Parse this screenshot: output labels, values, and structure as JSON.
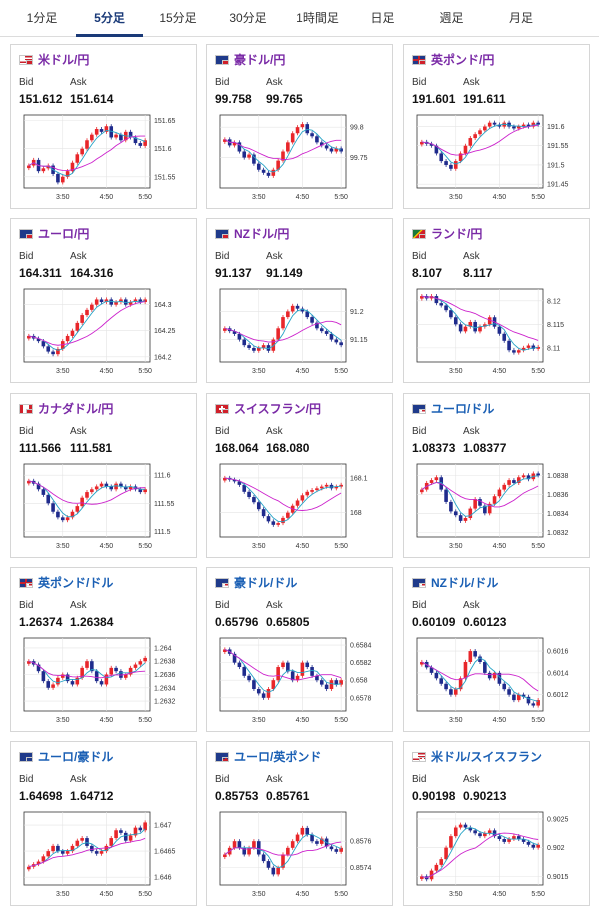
{
  "tabs": [
    "1分足",
    "5分足",
    "15分足",
    "30分足",
    "1時間足",
    "日足",
    "週足",
    "月足"
  ],
  "active_tab": 1,
  "labels": {
    "bid": "Bid",
    "ask": "Ask"
  },
  "colors": {
    "up": "#e8262a",
    "down": "#1f2b8c",
    "ma_short": "#25a3c6",
    "ma_long": "#cc22cc",
    "pair_purple": "#7a2aa6",
    "pair_blue": "#1a5fb4"
  },
  "cards": [
    {
      "name": "usd-jpy",
      "pair": "米ドル/円",
      "pair_color": "purple",
      "flag": "us-jp",
      "bid": "151.612",
      "ask": "151.614",
      "chart_data": {
        "type": "candlestick",
        "x_ticks": [
          "3:50",
          "4:50",
          "5:50"
        ],
        "y_ticks": [
          "151.65",
          "151.6",
          "151.55"
        ],
        "ylim": [
          151.53,
          151.66
        ],
        "close": [
          151.57,
          151.58,
          151.56,
          151.565,
          151.57,
          151.555,
          151.54,
          151.55,
          151.56,
          151.575,
          151.59,
          151.6,
          151.615,
          151.625,
          151.635,
          151.63,
          151.64,
          151.62,
          151.625,
          151.615,
          151.63,
          151.62,
          151.61,
          151.605,
          151.615
        ]
      }
    },
    {
      "name": "aud-jpy",
      "pair": "豪ドル/円",
      "pair_color": "purple",
      "flag": "au-jp",
      "bid": "99.758",
      "ask": "99.765",
      "chart_data": {
        "type": "candlestick",
        "x_ticks": [
          "3:50",
          "4:50",
          "5:50"
        ],
        "y_ticks": [
          "99.8",
          "99.75"
        ],
        "ylim": [
          99.7,
          99.82
        ],
        "close": [
          99.78,
          99.77,
          99.775,
          99.76,
          99.75,
          99.755,
          99.74,
          99.73,
          99.725,
          99.72,
          99.73,
          99.745,
          99.76,
          99.775,
          99.79,
          99.8,
          99.805,
          99.79,
          99.785,
          99.775,
          99.77,
          99.765,
          99.76,
          99.765,
          99.76
        ]
      }
    },
    {
      "name": "gbp-jpy",
      "pair": "英ポンド/円",
      "pair_color": "purple",
      "flag": "gb-jp",
      "bid": "191.601",
      "ask": "191.611",
      "chart_data": {
        "type": "candlestick",
        "x_ticks": [
          "3:50",
          "4:50",
          "5:50"
        ],
        "y_ticks": [
          "191.6",
          "191.55",
          "191.5",
          "191.45"
        ],
        "ylim": [
          191.44,
          191.63
        ],
        "close": [
          191.56,
          191.555,
          191.55,
          191.53,
          191.51,
          191.5,
          191.49,
          191.51,
          191.53,
          191.55,
          191.57,
          191.58,
          191.59,
          191.6,
          191.61,
          191.605,
          191.6,
          191.61,
          191.6,
          191.595,
          191.6,
          191.605,
          191.6,
          191.61,
          191.605
        ]
      }
    },
    {
      "name": "eur-jpy",
      "pair": "ユーロ/円",
      "pair_color": "purple",
      "flag": "eu-jp",
      "bid": "164.311",
      "ask": "164.316",
      "chart_data": {
        "type": "candlestick",
        "x_ticks": [
          "3:50",
          "4:50",
          "5:50"
        ],
        "y_ticks": [
          "164.3",
          "164.25",
          "164.2"
        ],
        "ylim": [
          164.19,
          164.33
        ],
        "close": [
          164.24,
          164.235,
          164.23,
          164.22,
          164.21,
          164.205,
          164.215,
          164.23,
          164.24,
          164.25,
          164.265,
          164.28,
          164.29,
          164.3,
          164.31,
          164.305,
          164.31,
          164.3,
          164.305,
          164.31,
          164.3,
          164.305,
          164.31,
          164.305,
          164.31
        ]
      }
    },
    {
      "name": "nzd-jpy",
      "pair": "NZドル/円",
      "pair_color": "purple",
      "flag": "nz-jp",
      "bid": "91.137",
      "ask": "91.149",
      "chart_data": {
        "type": "candlestick",
        "x_ticks": [
          "3:50",
          "4:50",
          "5:50"
        ],
        "y_ticks": [
          "91.2",
          "91.15"
        ],
        "ylim": [
          91.11,
          91.24
        ],
        "close": [
          91.17,
          91.165,
          91.16,
          91.15,
          91.14,
          91.135,
          91.13,
          91.135,
          91.14,
          91.13,
          91.15,
          91.17,
          91.19,
          91.2,
          91.21,
          91.205,
          91.2,
          91.19,
          91.18,
          91.17,
          91.165,
          91.16,
          91.15,
          91.145,
          91.14
        ]
      }
    },
    {
      "name": "zar-jpy",
      "pair": "ランド/円",
      "pair_color": "purple",
      "flag": "za-jp",
      "bid": "8.107",
      "ask": "8.117",
      "chart_data": {
        "type": "candlestick",
        "x_ticks": [
          "3:50",
          "4:50",
          "5:50"
        ],
        "y_ticks": [
          "8.12",
          "8.115",
          "8.11"
        ],
        "ylim": [
          8.107,
          8.1225
        ],
        "close": [
          8.121,
          8.1205,
          8.121,
          8.1195,
          8.119,
          8.118,
          8.1165,
          8.115,
          8.1135,
          8.1145,
          8.1155,
          8.1135,
          8.1145,
          8.115,
          8.1165,
          8.1145,
          8.113,
          8.1115,
          8.1095,
          8.109,
          8.1095,
          8.11,
          8.1105,
          8.1098,
          8.1102
        ]
      }
    },
    {
      "name": "cad-jpy",
      "pair": "カナダドル/円",
      "pair_color": "purple",
      "flag": "ca-jp",
      "bid": "111.566",
      "ask": "111.581",
      "chart_data": {
        "type": "candlestick",
        "x_ticks": [
          "3:50",
          "4:50",
          "5:50"
        ],
        "y_ticks": [
          "111.6",
          "111.55",
          "111.5"
        ],
        "ylim": [
          111.49,
          111.62
        ],
        "close": [
          111.59,
          111.585,
          111.575,
          111.565,
          111.55,
          111.535,
          111.525,
          111.52,
          111.525,
          111.535,
          111.545,
          111.56,
          111.57,
          111.575,
          111.58,
          111.585,
          111.58,
          111.575,
          111.585,
          111.58,
          111.575,
          111.58,
          111.575,
          111.57,
          111.575
        ]
      }
    },
    {
      "name": "chf-jpy",
      "pair": "スイスフラン/円",
      "pair_color": "purple",
      "flag": "ch-jp",
      "bid": "168.064",
      "ask": "168.080",
      "chart_data": {
        "type": "candlestick",
        "x_ticks": [
          "3:50",
          "4:50",
          "5:50"
        ],
        "y_ticks": [
          "168.1",
          "168"
        ],
        "ylim": [
          167.93,
          168.14
        ],
        "close": [
          168.1,
          168.095,
          168.09,
          168.08,
          168.06,
          168.045,
          168.03,
          168.01,
          167.99,
          167.975,
          167.965,
          167.97,
          167.985,
          168.0,
          168.02,
          168.035,
          168.05,
          168.06,
          168.065,
          168.07,
          168.075,
          168.08,
          168.07,
          168.075,
          168.08
        ]
      }
    },
    {
      "name": "eur-usd",
      "pair": "ユーロ/ドル",
      "pair_color": "blue",
      "flag": "eu-us",
      "bid": "1.08373",
      "ask": "1.08377",
      "chart_data": {
        "type": "candlestick",
        "x_ticks": [
          "3:50",
          "4:50",
          "5:50"
        ],
        "y_ticks": [
          "1.0838",
          "1.0836",
          "1.0834",
          "1.0832"
        ],
        "ylim": [
          1.08315,
          1.08392
        ],
        "close": [
          1.08365,
          1.08372,
          1.08375,
          1.08378,
          1.08365,
          1.08352,
          1.08342,
          1.08338,
          1.08332,
          1.08335,
          1.08345,
          1.08355,
          1.08348,
          1.0834,
          1.0835,
          1.08358,
          1.08365,
          1.0837,
          1.08375,
          1.08372,
          1.08378,
          1.0838,
          1.08376,
          1.08382,
          1.0838
        ]
      }
    },
    {
      "name": "gbp-usd",
      "pair": "英ポンド/ドル",
      "pair_color": "blue",
      "flag": "gb-us",
      "bid": "1.26374",
      "ask": "1.26384",
      "chart_data": {
        "type": "candlestick",
        "x_ticks": [
          "3:50",
          "4:50",
          "5:50"
        ],
        "y_ticks": [
          "1.264",
          "1.2638",
          "1.2636",
          "1.2634",
          "1.2632"
        ],
        "ylim": [
          1.26305,
          1.26415
        ],
        "close": [
          1.2638,
          1.26375,
          1.26365,
          1.2635,
          1.2634,
          1.26345,
          1.26355,
          1.2636,
          1.2635,
          1.26345,
          1.26355,
          1.2637,
          1.2638,
          1.26365,
          1.2635,
          1.26345,
          1.2636,
          1.2637,
          1.26365,
          1.26355,
          1.2636,
          1.2637,
          1.26375,
          1.2638,
          1.26385
        ]
      }
    },
    {
      "name": "aud-usd",
      "pair": "豪ドル/ドル",
      "pair_color": "blue",
      "flag": "au-us",
      "bid": "0.65796",
      "ask": "0.65805",
      "chart_data": {
        "type": "candlestick",
        "x_ticks": [
          "3:50",
          "4:50",
          "5:50"
        ],
        "y_ticks": [
          "0.6584",
          "0.6582",
          "0.658",
          "0.6578"
        ],
        "ylim": [
          0.65765,
          0.65848
        ],
        "close": [
          0.65835,
          0.6583,
          0.6582,
          0.65815,
          0.65805,
          0.658,
          0.6579,
          0.65785,
          0.6578,
          0.6579,
          0.658,
          0.65815,
          0.6582,
          0.6581,
          0.658,
          0.65805,
          0.6582,
          0.65815,
          0.65805,
          0.658,
          0.65795,
          0.6579,
          0.658,
          0.65795,
          0.658
        ]
      }
    },
    {
      "name": "nzd-usd",
      "pair": "NZドル/ドル",
      "pair_color": "blue",
      "flag": "nz-us",
      "bid": "0.60109",
      "ask": "0.60123",
      "chart_data": {
        "type": "candlestick",
        "x_ticks": [
          "3:50",
          "4:50",
          "5:50"
        ],
        "y_ticks": [
          "0.6016",
          "0.6014",
          "0.6012"
        ],
        "ylim": [
          0.60105,
          0.60172
        ],
        "close": [
          0.6015,
          0.60145,
          0.6014,
          0.60135,
          0.6013,
          0.60125,
          0.6012,
          0.60125,
          0.60135,
          0.6015,
          0.6016,
          0.60155,
          0.6015,
          0.6014,
          0.60135,
          0.6014,
          0.6013,
          0.60125,
          0.6012,
          0.60115,
          0.6012,
          0.60118,
          0.60112,
          0.6011,
          0.60115
        ]
      }
    },
    {
      "name": "eur-aud",
      "pair": "ユーロ/豪ドル",
      "pair_color": "blue",
      "flag": "eu-au",
      "bid": "1.64698",
      "ask": "1.64712",
      "chart_data": {
        "type": "candlestick",
        "x_ticks": [
          "3:50",
          "4:50",
          "5:50"
        ],
        "y_ticks": [
          "1.647",
          "1.6465",
          "1.646"
        ],
        "ylim": [
          1.64585,
          1.64725
        ],
        "close": [
          1.6462,
          1.64625,
          1.6463,
          1.6464,
          1.6465,
          1.6466,
          1.6465,
          1.64645,
          1.6465,
          1.6466,
          1.6467,
          1.64675,
          1.6466,
          1.6465,
          1.64645,
          1.6465,
          1.6466,
          1.64675,
          1.6469,
          1.64685,
          1.6467,
          1.6468,
          1.64695,
          1.6469,
          1.64705
        ]
      }
    },
    {
      "name": "eur-gbp",
      "pair": "ユーロ/英ポンド",
      "pair_color": "blue",
      "flag": "eu-gb",
      "bid": "0.85753",
      "ask": "0.85761",
      "chart_data": {
        "type": "candlestick",
        "x_ticks": [
          "3:50",
          "4:50",
          "5:50"
        ],
        "y_ticks": [
          "0.8576",
          "0.8574"
        ],
        "ylim": [
          0.85727,
          0.85782
        ],
        "close": [
          0.8575,
          0.85755,
          0.8576,
          0.85755,
          0.8575,
          0.85755,
          0.8576,
          0.8575,
          0.85745,
          0.8574,
          0.85735,
          0.8574,
          0.8575,
          0.85755,
          0.8576,
          0.85765,
          0.8577,
          0.85765,
          0.8576,
          0.85758,
          0.85762,
          0.85756,
          0.85754,
          0.85752,
          0.85755
        ]
      }
    },
    {
      "name": "usd-chf",
      "pair": "米ドル/スイスフラン",
      "pair_color": "blue",
      "flag": "us-ch",
      "bid": "0.90198",
      "ask": "0.90213",
      "chart_data": {
        "type": "candlestick",
        "x_ticks": [
          "3:50",
          "4:50",
          "5:50"
        ],
        "y_ticks": [
          "0.9025",
          "0.902",
          "0.9015"
        ],
        "ylim": [
          0.90135,
          0.90262
        ],
        "close": [
          0.9015,
          0.90145,
          0.9016,
          0.9017,
          0.9018,
          0.902,
          0.9022,
          0.90235,
          0.9024,
          0.90235,
          0.9023,
          0.90225,
          0.9022,
          0.90225,
          0.9023,
          0.9022,
          0.90215,
          0.9021,
          0.90215,
          0.9022,
          0.90215,
          0.9021,
          0.90205,
          0.902,
          0.90205
        ]
      }
    }
  ]
}
